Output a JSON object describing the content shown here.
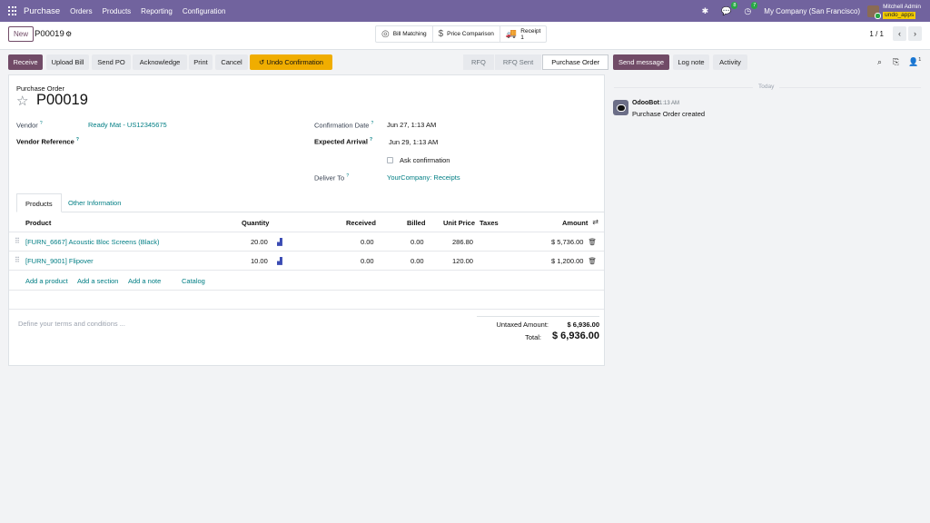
{
  "navbar": {
    "brand": "Purchase",
    "menus": [
      "Orders",
      "Products",
      "Reporting",
      "Configuration"
    ],
    "messages_count": "8",
    "activities_count": "7",
    "company": "My Company (San Francisco)",
    "user_name": "Mitchell Admin",
    "db_name": "undo_apps"
  },
  "control": {
    "new_label": "New",
    "record_name": "P00019",
    "smart_buttons": {
      "bill_matching": "Bill Matching",
      "price_comparison": "Price Comparison",
      "receipt_label": "Receipt",
      "receipt_count": "1"
    },
    "pager_value": "1 / 1"
  },
  "actions": {
    "receive": "Receive",
    "upload_bill": "Upload Bill",
    "send_po": "Send PO",
    "acknowledge": "Acknowledge",
    "print": "Print",
    "cancel": "Cancel",
    "undo_confirmation": "Undo Confirmation"
  },
  "stages": [
    "RFQ",
    "RFQ Sent",
    "Purchase Order"
  ],
  "active_stage": "Purchase Order",
  "form": {
    "type_label": "Purchase Order",
    "name": "P00019",
    "vendor_label": "Vendor",
    "vendor_value": "Ready Mat - US12345675",
    "vendor_ref_label": "Vendor Reference",
    "confirmation_date_label": "Confirmation Date",
    "confirmation_date_value": "Jun 27, 1:13 AM",
    "expected_arrival_label": "Expected Arrival",
    "expected_arrival_value": "Jun 29, 1:13 AM",
    "ask_confirmation_label": "Ask confirmation",
    "deliver_to_label": "Deliver To",
    "deliver_to_value": "YourCompany: Receipts",
    "help_mark": "?"
  },
  "tabs": [
    "Products",
    "Other Information"
  ],
  "table": {
    "headers": {
      "product": "Product",
      "quantity": "Quantity",
      "received": "Received",
      "billed": "Billed",
      "unit_price": "Unit Price",
      "taxes": "Taxes",
      "amount": "Amount"
    },
    "rows": [
      {
        "product": "[FURN_6667] Acoustic Bloc Screens (Black)",
        "quantity": "20.00",
        "received": "0.00",
        "billed": "0.00",
        "unit_price": "286.80",
        "amount": "$ 5,736.00"
      },
      {
        "product": "[FURN_9001] Flipover",
        "quantity": "10.00",
        "received": "0.00",
        "billed": "0.00",
        "unit_price": "120.00",
        "amount": "$ 1,200.00"
      }
    ],
    "add_links": {
      "add_product": "Add a product",
      "add_section": "Add a section",
      "add_note": "Add a note",
      "catalog": "Catalog"
    }
  },
  "footer": {
    "terms_placeholder": "Define your terms and conditions ...",
    "untaxed_label": "Untaxed Amount:",
    "untaxed_value": "$ 6,936.00",
    "total_label": "Total:",
    "total_value": "$ 6,936.00"
  },
  "chatter": {
    "send_message": "Send message",
    "log_note": "Log note",
    "activity": "Activity",
    "followers_count": "1",
    "date_separator": "Today",
    "messages": [
      {
        "author": "OdooBot",
        "time": "1:13 AM",
        "body": "Purchase Order created"
      }
    ]
  },
  "colors": {
    "navbar": "#71639e",
    "primary": "#714b67",
    "link": "#017e84",
    "warning": "#f0ad00"
  }
}
